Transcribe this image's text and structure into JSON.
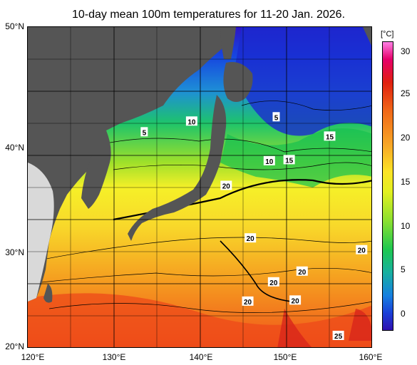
{
  "title": "10-day mean 100m temperatures for 11-20 Jan. 2026.",
  "x_ticks": [
    "120°E",
    "130°E",
    "140°E",
    "150°E",
    "160°E"
  ],
  "y_ticks": [
    "50°N",
    "40°N",
    "30°N",
    "20°N"
  ],
  "colorbar": {
    "unit": "[°C]",
    "ticks": [
      "30",
      "25",
      "20",
      "15",
      "10",
      "5",
      "0"
    ],
    "min": -2,
    "max": 32
  },
  "contour_labels": [
    {
      "text": "5",
      "lon": 133.5,
      "lat": 40.2
    },
    {
      "text": "10",
      "lon": 139.0,
      "lat": 41.2
    },
    {
      "text": "5",
      "lon": 148.8,
      "lat": 41.6
    },
    {
      "text": "15",
      "lon": 155.0,
      "lat": 39.8
    },
    {
      "text": "10",
      "lon": 148.0,
      "lat": 37.5
    },
    {
      "text": "15",
      "lon": 150.3,
      "lat": 37.6
    },
    {
      "text": "20",
      "lon": 143.0,
      "lat": 35.2
    },
    {
      "text": "20",
      "lon": 145.8,
      "lat": 30.3
    },
    {
      "text": "20",
      "lon": 158.7,
      "lat": 29.2
    },
    {
      "text": "20",
      "lon": 151.8,
      "lat": 27.2
    },
    {
      "text": "20",
      "lon": 148.5,
      "lat": 26.2
    },
    {
      "text": "20",
      "lon": 145.5,
      "lat": 24.4
    },
    {
      "text": "20",
      "lon": 151.0,
      "lat": 24.5
    },
    {
      "text": "25",
      "lon": 156.0,
      "lat": 21.2
    }
  ]
}
